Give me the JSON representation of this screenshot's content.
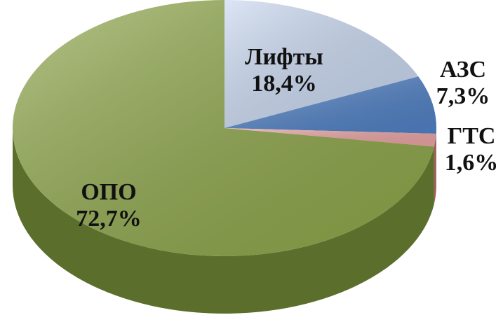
{
  "chart_data": {
    "type": "pie",
    "three_d": true,
    "categories": [
      "Лифты",
      "АЗС",
      "ГТС",
      "ОПО"
    ],
    "values": [
      18.4,
      7.3,
      1.6,
      72.7
    ],
    "value_labels": [
      "18,4%",
      "7,3%",
      "1,6%",
      "72,7%"
    ],
    "colors": [
      "#c9d8f0",
      "#4f80c4",
      "#e9a3a3",
      "#8ea64a"
    ],
    "side_colors": [
      "#7f94b8",
      "#2b5490",
      "#a85a5a",
      "#5b6e2c"
    ]
  }
}
